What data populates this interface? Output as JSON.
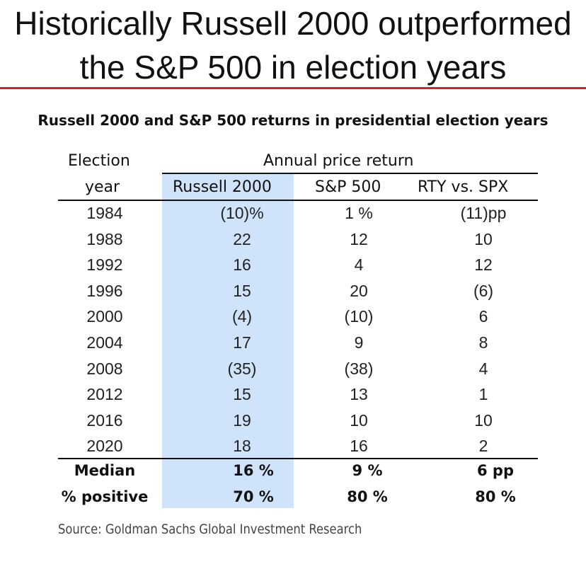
{
  "headline": {
    "line1": "Historically Russell 2000 outperformed",
    "line2": "the S&P 500 in election years"
  },
  "colors": {
    "accent_rule": "#d4212b",
    "highlight_column": "#cfe4fb"
  },
  "chart_data": {
    "type": "table",
    "title": "Russell 2000 and S&P 500 returns in presidential election years",
    "header": {
      "year_line1": "Election",
      "year_line2": "year",
      "group": "Annual price return",
      "columns": [
        "Russell 2000",
        "S&P 500",
        "RTY vs. SPX"
      ]
    },
    "highlighted_column": "Russell 2000",
    "rows": [
      {
        "year": "1984",
        "rty": "(10)%",
        "spx": "1 %",
        "diff": "(11)pp"
      },
      {
        "year": "1988",
        "rty": "22",
        "spx": "12",
        "diff": "10"
      },
      {
        "year": "1992",
        "rty": "16",
        "spx": "4",
        "diff": "12"
      },
      {
        "year": "1996",
        "rty": "15",
        "spx": "20",
        "diff": "(6)"
      },
      {
        "year": "2000",
        "rty": "(4)",
        "spx": "(10)",
        "diff": "6"
      },
      {
        "year": "2004",
        "rty": "17",
        "spx": "9",
        "diff": "8"
      },
      {
        "year": "2008",
        "rty": "(35)",
        "spx": "(38)",
        "diff": "4"
      },
      {
        "year": "2012",
        "rty": "15",
        "spx": "13",
        "diff": "1"
      },
      {
        "year": "2016",
        "rty": "19",
        "spx": "10",
        "diff": "10"
      },
      {
        "year": "2020",
        "rty": "18",
        "spx": "16",
        "diff": "2"
      }
    ],
    "summary": [
      {
        "label": "Median",
        "rty": "16 %",
        "spx": "9 %",
        "diff": "6 pp"
      },
      {
        "label": "% positive",
        "rty": "70 %",
        "spx": "80 %",
        "diff": "80 %"
      }
    ],
    "source": "Source: Goldman Sachs Global Investment Research"
  }
}
